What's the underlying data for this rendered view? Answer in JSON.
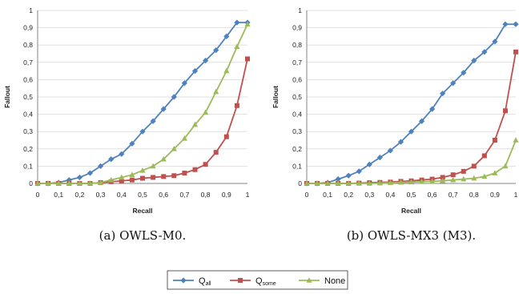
{
  "legend": {
    "entries": [
      {
        "main": "Q",
        "sub": "all",
        "color": "#4f81bd",
        "marker": "diamond"
      },
      {
        "main": "Q",
        "sub": "some",
        "color": "#c0504d",
        "marker": "square"
      },
      {
        "main": "None",
        "sub": "",
        "color": "#9bbb59",
        "marker": "triangle"
      }
    ]
  },
  "chart_data": [
    {
      "type": "line",
      "caption": "(a) OWLS-M0.",
      "xlabel": "Recall",
      "ylabel": "Fallout",
      "xlim": [
        0,
        1
      ],
      "ylim": [
        0,
        1
      ],
      "x_ticks": [
        "0",
        "0,1",
        "0,2",
        "0,3",
        "0,4",
        "0,5",
        "0,6",
        "0,7",
        "0,8",
        "0,9",
        "1"
      ],
      "y_ticks": [
        "0",
        "0,1",
        "0,2",
        "0,3",
        "0,4",
        "0,5",
        "0,6",
        "0,7",
        "0,8",
        "0,9",
        "1"
      ],
      "grid": "horizontal",
      "x": [
        0,
        0.05,
        0.1,
        0.15,
        0.2,
        0.25,
        0.3,
        0.35,
        0.4,
        0.45,
        0.5,
        0.55,
        0.6,
        0.65,
        0.7,
        0.75,
        0.8,
        0.85,
        0.9,
        0.95,
        1
      ],
      "series": [
        {
          "name": "Q_all",
          "color": "#4f81bd",
          "marker": "diamond",
          "values": [
            0,
            0,
            0.005,
            0.02,
            0.035,
            0.06,
            0.1,
            0.14,
            0.17,
            0.23,
            0.3,
            0.36,
            0.43,
            0.5,
            0.58,
            0.65,
            0.71,
            0.77,
            0.85,
            0.93,
            0.93
          ]
        },
        {
          "name": "Q_some",
          "color": "#c0504d",
          "marker": "square",
          "values": [
            0,
            0,
            0,
            0,
            0,
            0,
            0.005,
            0.01,
            0.015,
            0.02,
            0.03,
            0.035,
            0.04,
            0.045,
            0.06,
            0.08,
            0.11,
            0.18,
            0.27,
            0.45,
            0.72
          ]
        },
        {
          "name": "None",
          "color": "#9bbb59",
          "marker": "triangle",
          "values": [
            0,
            0,
            0,
            0,
            0,
            0,
            0.005,
            0.02,
            0.035,
            0.05,
            0.075,
            0.1,
            0.14,
            0.2,
            0.26,
            0.34,
            0.41,
            0.53,
            0.65,
            0.79,
            0.92
          ]
        }
      ]
    },
    {
      "type": "line",
      "caption": "(b) OWLS-MX3 (M3).",
      "xlabel": "Recall",
      "ylabel": "Fallout",
      "xlim": [
        0,
        1
      ],
      "ylim": [
        0,
        1
      ],
      "x_ticks": [
        "0",
        "0,1",
        "0,2",
        "0,3",
        "0,4",
        "0,5",
        "0,6",
        "0,7",
        "0,8",
        "0,9",
        "1"
      ],
      "y_ticks": [
        "0",
        "0,1",
        "0,2",
        "0,3",
        "0,4",
        "0,5",
        "0,6",
        "0,7",
        "0,8",
        "0,9",
        "1"
      ],
      "grid": "horizontal",
      "x": [
        0,
        0.05,
        0.1,
        0.15,
        0.2,
        0.25,
        0.3,
        0.35,
        0.4,
        0.45,
        0.5,
        0.55,
        0.6,
        0.65,
        0.7,
        0.75,
        0.8,
        0.85,
        0.9,
        0.95,
        1
      ],
      "series": [
        {
          "name": "Q_all",
          "color": "#4f81bd",
          "marker": "diamond",
          "values": [
            0,
            0,
            0.005,
            0.025,
            0.045,
            0.07,
            0.11,
            0.15,
            0.19,
            0.24,
            0.3,
            0.36,
            0.43,
            0.52,
            0.58,
            0.64,
            0.71,
            0.76,
            0.82,
            0.92,
            0.92
          ]
        },
        {
          "name": "Q_some",
          "color": "#c0504d",
          "marker": "square",
          "values": [
            0,
            0,
            0,
            0,
            0,
            0.002,
            0.004,
            0.006,
            0.008,
            0.012,
            0.015,
            0.02,
            0.025,
            0.035,
            0.05,
            0.07,
            0.1,
            0.16,
            0.25,
            0.42,
            0.76
          ]
        },
        {
          "name": "None",
          "color": "#9bbb59",
          "marker": "triangle",
          "values": [
            0,
            0,
            0,
            0,
            0,
            0,
            0,
            0.002,
            0.004,
            0.006,
            0.008,
            0.01,
            0.012,
            0.015,
            0.02,
            0.025,
            0.03,
            0.04,
            0.06,
            0.1,
            0.25
          ]
        }
      ]
    }
  ]
}
